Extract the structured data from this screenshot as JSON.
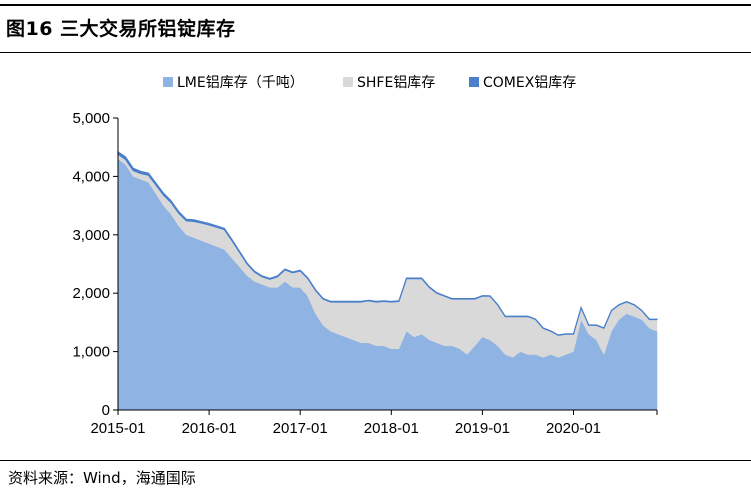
{
  "header": {
    "title": "图16 三大交易所铝锭库存"
  },
  "footer": {
    "source": "资料来源：Wind，海通国际"
  },
  "chart_data": {
    "type": "area",
    "stacked": true,
    "title": "",
    "xlabel": "",
    "ylabel": "",
    "ylim": [
      0,
      5000
    ],
    "yticks": [
      0,
      1000,
      2000,
      3000,
      4000,
      5000
    ],
    "ytick_labels": [
      "0",
      "1,000",
      "2,000",
      "3,000",
      "4,000",
      "5,000"
    ],
    "xtick_labels": [
      "2015-01",
      "2016-01",
      "2017-01",
      "2018-01",
      "2019-01",
      "2020-01"
    ],
    "x_start": "2015-01",
    "x_end": "2020-12",
    "grid": false,
    "legend": "top",
    "x": [
      "2015-01",
      "2015-02",
      "2015-03",
      "2015-04",
      "2015-05",
      "2015-06",
      "2015-07",
      "2015-08",
      "2015-09",
      "2015-10",
      "2015-11",
      "2015-12",
      "2016-01",
      "2016-02",
      "2016-03",
      "2016-04",
      "2016-05",
      "2016-06",
      "2016-07",
      "2016-08",
      "2016-09",
      "2016-10",
      "2016-11",
      "2016-12",
      "2017-01",
      "2017-02",
      "2017-03",
      "2017-04",
      "2017-05",
      "2017-06",
      "2017-07",
      "2017-08",
      "2017-09",
      "2017-10",
      "2017-11",
      "2017-12",
      "2018-01",
      "2018-02",
      "2018-03",
      "2018-04",
      "2018-05",
      "2018-06",
      "2018-07",
      "2018-08",
      "2018-09",
      "2018-10",
      "2018-11",
      "2018-12",
      "2019-01",
      "2019-02",
      "2019-03",
      "2019-04",
      "2019-05",
      "2019-06",
      "2019-07",
      "2019-08",
      "2019-09",
      "2019-10",
      "2019-11",
      "2019-12",
      "2020-01",
      "2020-02",
      "2020-03",
      "2020-04",
      "2020-05",
      "2020-06",
      "2020-07",
      "2020-08",
      "2020-09",
      "2020-10",
      "2020-11",
      "2020-12"
    ],
    "series": [
      {
        "name": "LME铝库存（千吨）",
        "color": "#8fb4e3",
        "values": [
          4300,
          4200,
          4000,
          3950,
          3900,
          3700,
          3500,
          3350,
          3150,
          3000,
          2950,
          2900,
          2850,
          2800,
          2750,
          2600,
          2450,
          2300,
          2200,
          2150,
          2100,
          2100,
          2200,
          2100,
          2100,
          1950,
          1650,
          1450,
          1350,
          1300,
          1250,
          1200,
          1150,
          1150,
          1100,
          1100,
          1050,
          1050,
          1350,
          1250,
          1300,
          1200,
          1150,
          1100,
          1100,
          1050,
          950,
          1100,
          1250,
          1200,
          1100,
          950,
          900,
          1000,
          950,
          950,
          900,
          950,
          900,
          950,
          1000,
          1550,
          1300,
          1200,
          950,
          1350,
          1550,
          1650,
          1600,
          1550,
          1400,
          1350
        ]
      },
      {
        "name": "SHFE铝库存",
        "color": "#d9d9d9",
        "values": [
          80,
          90,
          100,
          100,
          120,
          150,
          180,
          200,
          220,
          240,
          280,
          300,
          320,
          330,
          340,
          300,
          250,
          200,
          160,
          130,
          140,
          180,
          200,
          250,
          280,
          300,
          400,
          450,
          500,
          550,
          600,
          650,
          700,
          720,
          750,
          760,
          800,
          810,
          900,
          1000,
          950,
          900,
          850,
          850,
          800,
          850,
          950,
          800,
          700,
          750,
          700,
          650,
          700,
          600,
          650,
          600,
          500,
          400,
          380,
          350,
          300,
          200,
          150,
          250,
          450,
          350,
          250,
          200,
          200,
          150,
          150,
          200
        ]
      },
      {
        "name": "COMEX铝库存",
        "color": "#4a7fcb",
        "values": [
          40,
          40,
          38,
          36,
          35,
          34,
          32,
          30,
          28,
          26,
          25,
          24,
          22,
          22,
          20,
          20,
          18,
          16,
          15,
          15,
          14,
          14,
          13,
          12,
          12,
          12,
          11,
          11,
          10,
          10,
          10,
          10,
          9,
          9,
          9,
          9,
          8,
          8,
          8,
          8,
          8,
          8,
          8,
          7,
          7,
          7,
          7,
          7,
          7,
          6,
          6,
          6,
          6,
          6,
          6,
          6,
          5,
          5,
          5,
          5,
          5,
          5,
          5,
          5,
          5,
          5,
          5,
          5,
          5,
          5,
          5,
          5
        ]
      }
    ]
  }
}
